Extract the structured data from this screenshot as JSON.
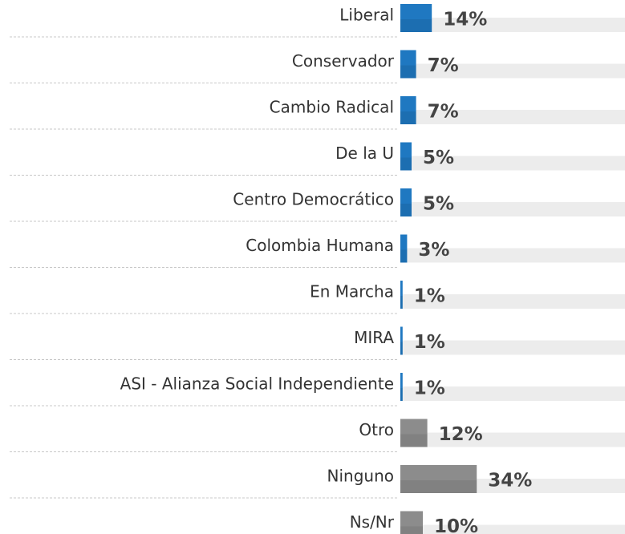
{
  "chart_data": {
    "type": "barh",
    "categories": [
      "Liberal",
      "Conservador",
      "Cambio Radical",
      "De la U",
      "Centro Democrático",
      "Colombia Humana",
      "En Marcha",
      "MIRA",
      "ASI - Alianza Social Independiente",
      "Otro",
      "Ninguno",
      "Ns/Nr"
    ],
    "values": [
      14,
      7,
      7,
      5,
      5,
      3,
      1,
      1,
      1,
      12,
      34,
      10
    ],
    "value_labels": [
      "14%",
      "7%",
      "7%",
      "5%",
      "5%",
      "3%",
      "1%",
      "1%",
      "1%",
      "12%",
      "34%",
      "10%"
    ],
    "colors": [
      "#1f78c1",
      "#1f78c1",
      "#1f78c1",
      "#1f78c1",
      "#1f78c1",
      "#1f78c1",
      "#1f78c1",
      "#1f78c1",
      "#1f78c1",
      "#8c8c8c",
      "#8c8c8c",
      "#8c8c8c"
    ],
    "xlim": [
      0,
      100
    ]
  }
}
